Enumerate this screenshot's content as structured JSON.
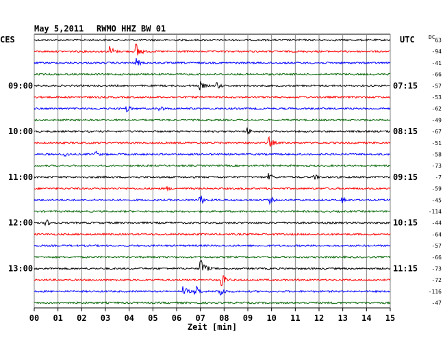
{
  "header": {
    "date": "May 5,2011",
    "station": "RWMO HHZ BW 01",
    "left_zone": "CES",
    "right_zone": "UTC",
    "dc_label": "DC"
  },
  "chart_data": {
    "type": "line",
    "xlabel": "Zeit [min]",
    "xlim": [
      0,
      15
    ],
    "x_ticks": [
      "00",
      "01",
      "02",
      "03",
      "04",
      "05",
      "06",
      "07",
      "08",
      "09",
      "10",
      "11",
      "12",
      "13",
      "14",
      "15"
    ],
    "trace_count": 24,
    "trace_colors": [
      "#000000",
      "#ff0000",
      "#0000ff",
      "#006400"
    ],
    "left_hour_labels": [
      {
        "trace": 4,
        "text": "09:00"
      },
      {
        "trace": 8,
        "text": "10:00"
      },
      {
        "trace": 12,
        "text": "11:00"
      },
      {
        "trace": 16,
        "text": "12:00"
      },
      {
        "trace": 20,
        "text": "13:00"
      }
    ],
    "right_hour_labels": [
      {
        "trace": 4,
        "text": "07:15"
      },
      {
        "trace": 8,
        "text": "08:15"
      },
      {
        "trace": 12,
        "text": "09:15"
      },
      {
        "trace": 16,
        "text": "10:15"
      },
      {
        "trace": 20,
        "text": "11:15"
      }
    ],
    "dc_offsets": [
      "63",
      "-94",
      "-41",
      "-66",
      "-57",
      "-53",
      "-62",
      "-49",
      "-67",
      "-51",
      "-58",
      "-73",
      "-7",
      "-59",
      "-45",
      "-114",
      "-44",
      "-64",
      "-57",
      "-66",
      "-73",
      "-72",
      "-116",
      "-47"
    ],
    "events": [
      {
        "trace": 1,
        "minute": 3.2,
        "amp": 9
      },
      {
        "trace": 1,
        "minute": 4.3,
        "amp": 13
      },
      {
        "trace": 2,
        "minute": 4.3,
        "amp": 7
      },
      {
        "trace": 4,
        "minute": 7.7,
        "amp": 6
      },
      {
        "trace": 4,
        "minute": 7.0,
        "amp": 7
      },
      {
        "trace": 6,
        "minute": 3.9,
        "amp": 6
      },
      {
        "trace": 6,
        "minute": 5.3,
        "amp": 5
      },
      {
        "trace": 8,
        "minute": 9.0,
        "amp": 6
      },
      {
        "trace": 9,
        "minute": 9.9,
        "amp": 9
      },
      {
        "trace": 10,
        "minute": 1.3,
        "amp": 5
      },
      {
        "trace": 10,
        "minute": 2.6,
        "amp": 5
      },
      {
        "trace": 12,
        "minute": 11.8,
        "amp": 5
      },
      {
        "trace": 12,
        "minute": 9.9,
        "amp": 7
      },
      {
        "trace": 13,
        "minute": 5.6,
        "amp": 4
      },
      {
        "trace": 14,
        "minute": 7.0,
        "amp": 8
      },
      {
        "trace": 14,
        "minute": 9.9,
        "amp": 7
      },
      {
        "trace": 14,
        "minute": 13.0,
        "amp": 6
      },
      {
        "trace": 16,
        "minute": 0.5,
        "amp": 6
      },
      {
        "trace": 20,
        "minute": 7.0,
        "amp": 18
      },
      {
        "trace": 21,
        "minute": 7.9,
        "amp": 10
      },
      {
        "trace": 22,
        "minute": 6.3,
        "amp": 8
      },
      {
        "trace": 22,
        "minute": 6.8,
        "amp": 9
      },
      {
        "trace": 22,
        "minute": 7.8,
        "amp": 11
      }
    ]
  }
}
